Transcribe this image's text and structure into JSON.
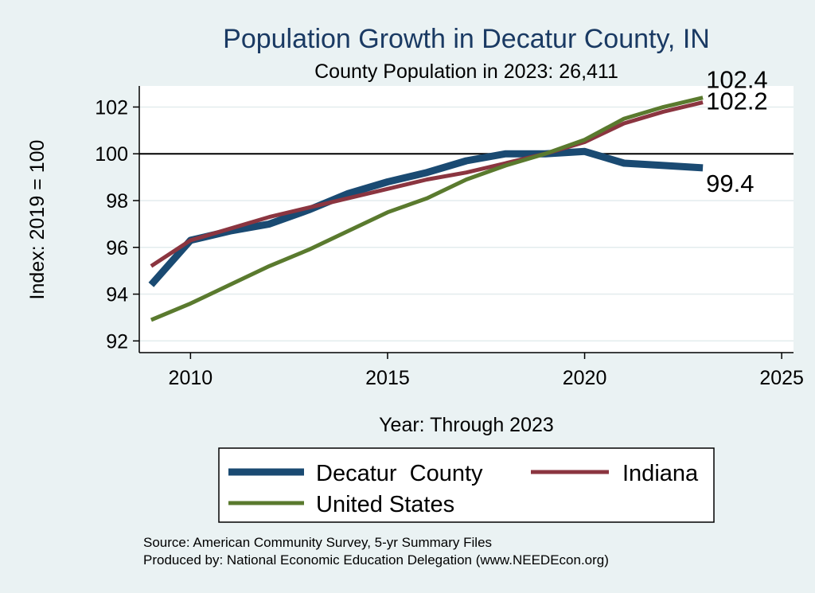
{
  "chart_data": {
    "type": "line",
    "title": "Population Growth in Decatur County, IN",
    "subtitle": "County Population in 2023: 26,411",
    "xlabel": "Year: Through 2023",
    "ylabel": "Index: 2019 = 100",
    "xlim": [
      2008.7,
      2025.3
    ],
    "ylim": [
      91.5,
      102.9
    ],
    "xticks": [
      2010,
      2015,
      2020,
      2025
    ],
    "yticks": [
      92,
      94,
      96,
      98,
      100,
      102
    ],
    "reference_line": 100,
    "grid": true,
    "x": [
      2009,
      2010,
      2011,
      2012,
      2013,
      2014,
      2015,
      2016,
      2017,
      2018,
      2019,
      2020,
      2021,
      2022,
      2023
    ],
    "series": [
      {
        "name": "Decatur  County",
        "color": "#1a4a72",
        "values": [
          94.4,
          96.3,
          96.7,
          97.0,
          97.6,
          98.3,
          98.8,
          99.2,
          99.7,
          100.0,
          100.0,
          100.1,
          99.6,
          99.5,
          99.4
        ],
        "end_label": "99.4"
      },
      {
        "name": "Indiana",
        "color": "#8b3540",
        "values": [
          95.2,
          96.3,
          96.8,
          97.3,
          97.7,
          98.1,
          98.5,
          98.9,
          99.2,
          99.6,
          100.0,
          100.5,
          101.3,
          101.8,
          102.2
        ],
        "end_label": "102.2"
      },
      {
        "name": "United States",
        "color": "#5a7a2e",
        "values": [
          92.9,
          93.6,
          94.4,
          95.2,
          95.9,
          96.7,
          97.5,
          98.1,
          98.9,
          99.5,
          100.0,
          100.6,
          101.5,
          102.0,
          102.4
        ],
        "end_label": "102.4"
      }
    ],
    "legend": {
      "position": "bottom",
      "entries": [
        "Decatur  County",
        "Indiana",
        "United States"
      ]
    }
  },
  "source": {
    "line1": "Source: American Community Survey, 5-yr Summary Files",
    "line2": "Produced by: National Economic Education Delegation (www.NEEDEcon.org)"
  }
}
